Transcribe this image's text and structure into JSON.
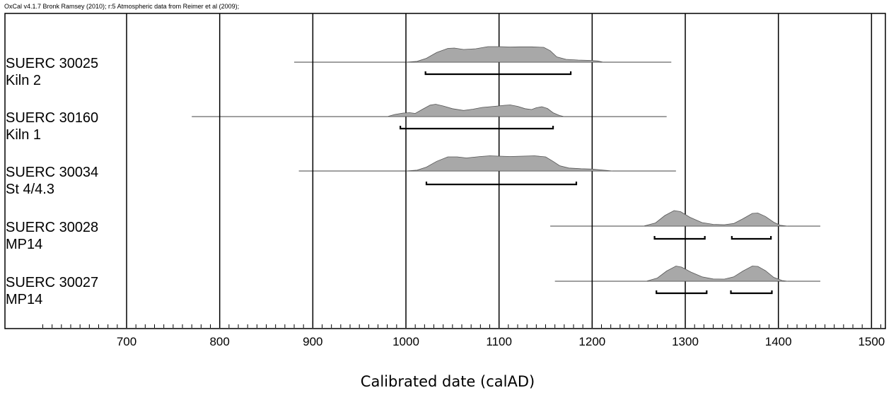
{
  "header": "OxCal v4.1.7 Bronk Ramsey (2010); r:5 Atmospheric data from Reimer et al (2009);",
  "chart_data": {
    "type": "area",
    "xlabel": "Calibrated date (calAD)",
    "xlim": [
      610,
      1510
    ],
    "x_ticks": [
      700,
      800,
      900,
      1000,
      1100,
      1200,
      1300,
      1400,
      1500
    ],
    "grid": true,
    "samples": [
      {
        "id": "SUERC 30025",
        "context": "Kiln 2",
        "line_range": [
          880,
          1285
        ],
        "ranges_95": [
          [
            1021,
            1177
          ]
        ],
        "distribution": [
          [
            1000,
            0
          ],
          [
            1012,
            0.05
          ],
          [
            1022,
            0.22
          ],
          [
            1033,
            0.55
          ],
          [
            1045,
            0.78
          ],
          [
            1052,
            0.8
          ],
          [
            1062,
            0.72
          ],
          [
            1075,
            0.76
          ],
          [
            1088,
            0.88
          ],
          [
            1100,
            0.88
          ],
          [
            1112,
            0.86
          ],
          [
            1122,
            0.87
          ],
          [
            1135,
            0.87
          ],
          [
            1148,
            0.84
          ],
          [
            1155,
            0.65
          ],
          [
            1162,
            0.3
          ],
          [
            1172,
            0.16
          ],
          [
            1185,
            0.12
          ],
          [
            1198,
            0.1
          ],
          [
            1206,
            0.07
          ],
          [
            1212,
            0
          ]
        ]
      },
      {
        "id": "SUERC 30160",
        "context": "Kiln 1",
        "line_range": [
          770,
          1280
        ],
        "ranges_95": [
          [
            994,
            1158
          ]
        ],
        "distribution": [
          [
            980,
            0
          ],
          [
            988,
            0.12
          ],
          [
            997,
            0.2
          ],
          [
            1004,
            0.22
          ],
          [
            1010,
            0.18
          ],
          [
            1018,
            0.42
          ],
          [
            1026,
            0.65
          ],
          [
            1032,
            0.7
          ],
          [
            1040,
            0.6
          ],
          [
            1050,
            0.45
          ],
          [
            1062,
            0.35
          ],
          [
            1072,
            0.42
          ],
          [
            1082,
            0.52
          ],
          [
            1095,
            0.58
          ],
          [
            1106,
            0.64
          ],
          [
            1112,
            0.66
          ],
          [
            1120,
            0.58
          ],
          [
            1128,
            0.45
          ],
          [
            1135,
            0.4
          ],
          [
            1140,
            0.5
          ],
          [
            1146,
            0.56
          ],
          [
            1152,
            0.46
          ],
          [
            1158,
            0.22
          ],
          [
            1165,
            0.06
          ],
          [
            1170,
            0
          ]
        ]
      },
      {
        "id": "SUERC 30034",
        "context": "St 4/4.3",
        "line_range": [
          885,
          1290
        ],
        "ranges_95": [
          [
            1022,
            1183
          ]
        ],
        "distribution": [
          [
            1000,
            0
          ],
          [
            1012,
            0.05
          ],
          [
            1022,
            0.22
          ],
          [
            1033,
            0.55
          ],
          [
            1045,
            0.8
          ],
          [
            1055,
            0.8
          ],
          [
            1065,
            0.74
          ],
          [
            1080,
            0.82
          ],
          [
            1090,
            0.86
          ],
          [
            1100,
            0.84
          ],
          [
            1112,
            0.82
          ],
          [
            1125,
            0.84
          ],
          [
            1138,
            0.86
          ],
          [
            1150,
            0.8
          ],
          [
            1158,
            0.55
          ],
          [
            1165,
            0.3
          ],
          [
            1175,
            0.17
          ],
          [
            1188,
            0.13
          ],
          [
            1200,
            0.11
          ],
          [
            1208,
            0.07
          ],
          [
            1222,
            0
          ]
        ]
      },
      {
        "id": "SUERC 30028",
        "context": "MP14",
        "line_range": [
          1155,
          1445
        ],
        "ranges_95": [
          [
            1267,
            1321
          ],
          [
            1350,
            1392
          ]
        ],
        "distribution": [
          [
            1255,
            0
          ],
          [
            1268,
            0.18
          ],
          [
            1278,
            0.6
          ],
          [
            1288,
            0.88
          ],
          [
            1295,
            0.82
          ],
          [
            1305,
            0.5
          ],
          [
            1318,
            0.2
          ],
          [
            1330,
            0.1
          ],
          [
            1342,
            0.08
          ],
          [
            1352,
            0.15
          ],
          [
            1362,
            0.42
          ],
          [
            1372,
            0.72
          ],
          [
            1378,
            0.74
          ],
          [
            1386,
            0.55
          ],
          [
            1395,
            0.22
          ],
          [
            1402,
            0.05
          ],
          [
            1410,
            0
          ]
        ]
      },
      {
        "id": "SUERC 30027",
        "context": "MP14",
        "line_range": [
          1160,
          1445
        ],
        "ranges_95": [
          [
            1269,
            1323
          ],
          [
            1349,
            1393
          ]
        ],
        "distribution": [
          [
            1258,
            0
          ],
          [
            1270,
            0.18
          ],
          [
            1280,
            0.58
          ],
          [
            1290,
            0.86
          ],
          [
            1296,
            0.8
          ],
          [
            1306,
            0.52
          ],
          [
            1318,
            0.25
          ],
          [
            1330,
            0.13
          ],
          [
            1342,
            0.12
          ],
          [
            1352,
            0.25
          ],
          [
            1362,
            0.58
          ],
          [
            1372,
            0.86
          ],
          [
            1378,
            0.84
          ],
          [
            1386,
            0.6
          ],
          [
            1395,
            0.22
          ],
          [
            1404,
            0.04
          ],
          [
            1410,
            0
          ]
        ]
      }
    ]
  }
}
